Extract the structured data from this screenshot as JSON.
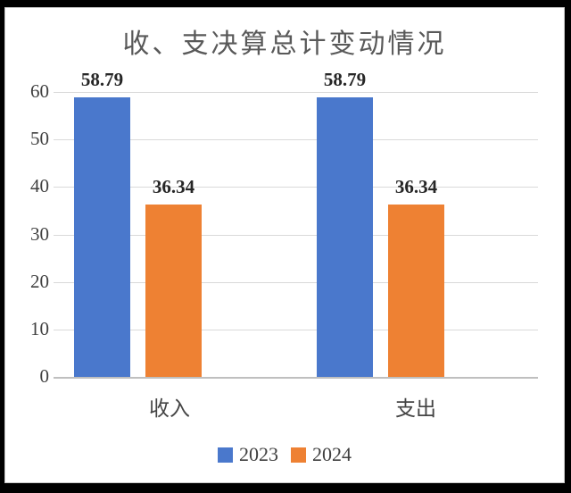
{
  "chart_data": {
    "type": "bar",
    "title": "收、支决算总计变动情况",
    "categories": [
      "收入",
      "支出"
    ],
    "series": [
      {
        "name": "2023",
        "color": "#4a78cc",
        "values": [
          58.79,
          58.79
        ],
        "labels": [
          "58.79",
          "58.79"
        ]
      },
      {
        "name": "2024",
        "color": "#ee8133",
        "values": [
          36.34,
          36.34
        ],
        "labels": [
          "36.34",
          "36.34"
        ]
      }
    ],
    "ylim": [
      0,
      60
    ],
    "yticks": [
      0,
      10,
      20,
      30,
      40,
      50,
      60
    ],
    "grid": true,
    "legend_position": "bottom",
    "colors": {
      "gridline": "#d9d9d9",
      "axis_line": "#bfbfbf",
      "tick_text": "#404040",
      "title_text": "#595959",
      "value_label_text": "#262626",
      "frame": "#000000",
      "background": "#ffffff"
    }
  }
}
